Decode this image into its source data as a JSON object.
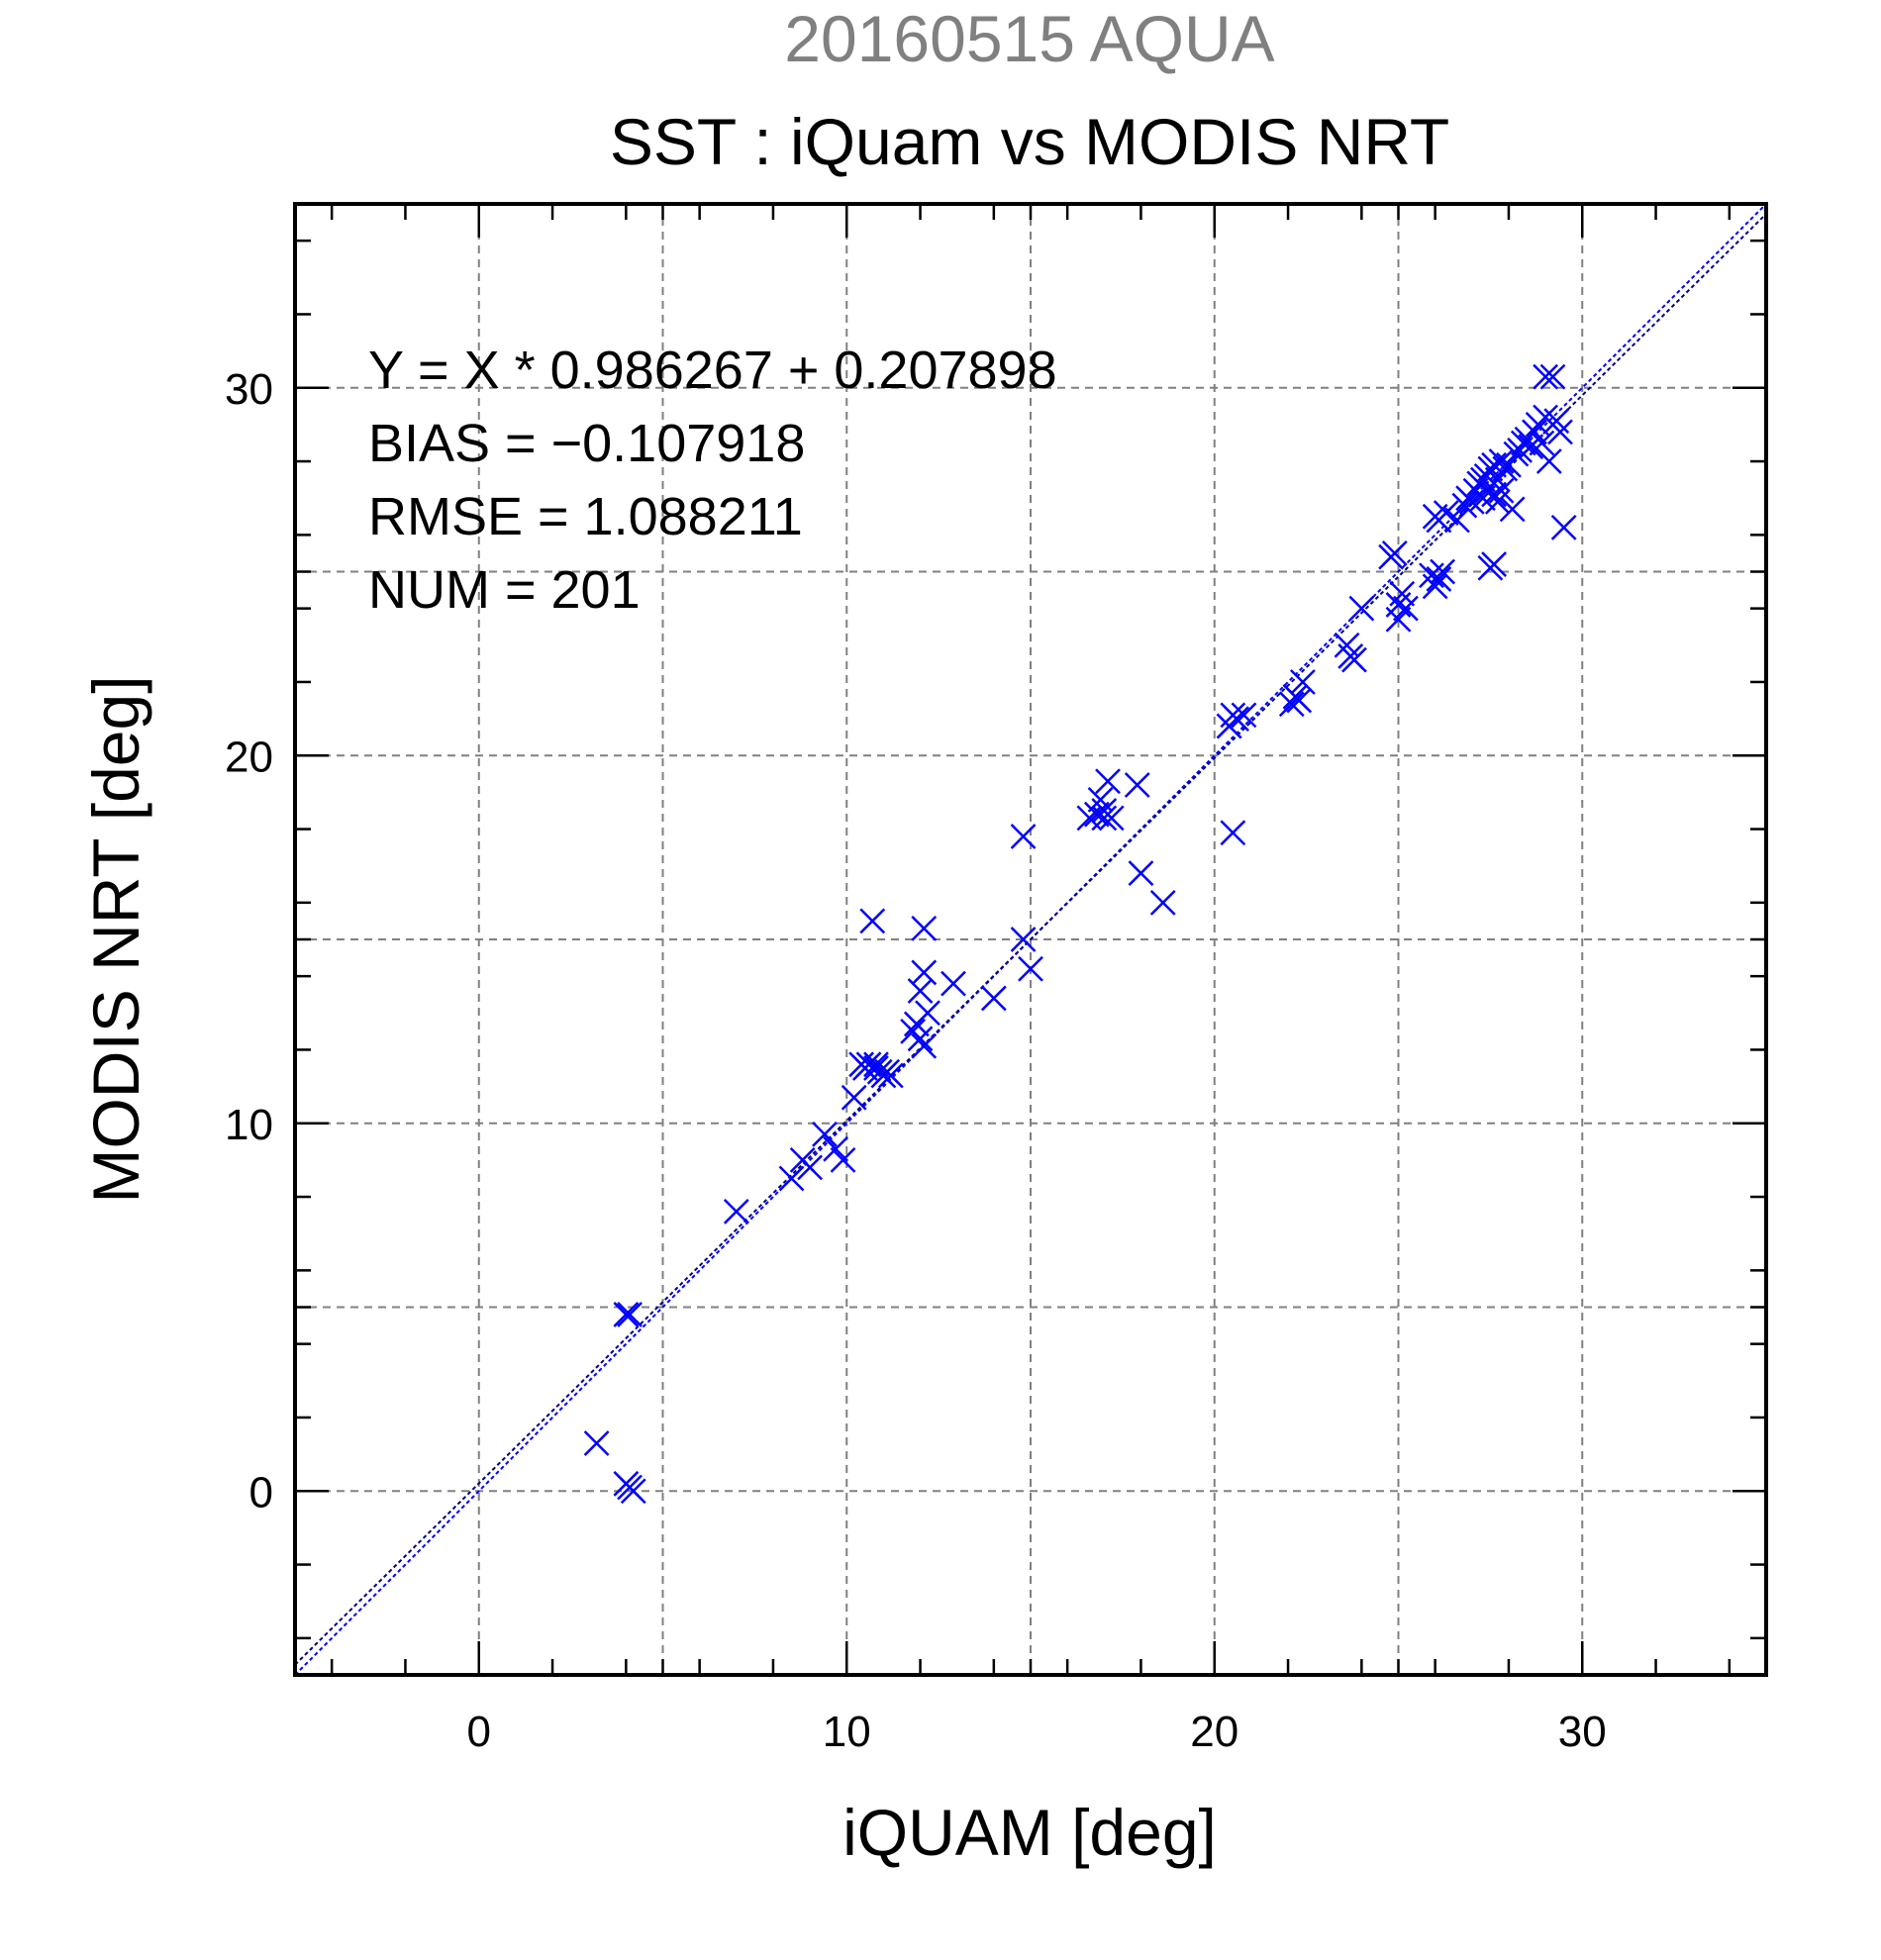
{
  "chart_data": {
    "type": "scatter",
    "suptitle": "20160515 AQUA",
    "title": "SST : iQuam vs MODIS NRT",
    "xlabel": "iQUAM [deg]",
    "ylabel": "MODIS NRT [deg]",
    "xlim": [
      -5,
      35
    ],
    "ylim": [
      -5,
      35
    ],
    "xticks": [
      0,
      10,
      20,
      30
    ],
    "yticks": [
      0,
      10,
      20,
      30
    ],
    "grid": true,
    "colors": {
      "points": "#0000ff",
      "fit_line": "#000080",
      "identity_line": "#0000ff",
      "suptitle": "#808080",
      "grid": "#808080"
    },
    "stats": [
      "Y = X * 0.986267 + 0.207898",
      "BIAS = −0.107918",
      "RMSE = 1.088211",
      "NUM = 201"
    ],
    "fit": {
      "slope": 0.986267,
      "intercept": 0.207898
    },
    "series": [
      {
        "marker": "x",
        "x": [
          3.2,
          4.0,
          4.1,
          4.1,
          4.2,
          4.0,
          7.0,
          8.5,
          8.8,
          9.0,
          9.4,
          9.7,
          9.9,
          10.2,
          10.4,
          10.6,
          10.8,
          10.9,
          11.0,
          11.2,
          10.5,
          10.7,
          11.1,
          10.8,
          11.8,
          11.9,
          12.0,
          12.1,
          12.2,
          12.0,
          12.1,
          12.9,
          12.1,
          14.0,
          14.8,
          14.8,
          15.0,
          16.6,
          16.8,
          17.0,
          16.9,
          17.1,
          17.2,
          17.0,
          17.9,
          18.0,
          18.6,
          20.4,
          20.5,
          20.6,
          20.8,
          20.5,
          20.4,
          22.1,
          22.2,
          22.3,
          22.4,
          23.6,
          23.7,
          23.8,
          24.0,
          24.8,
          24.9,
          25.0,
          25.1,
          25.2,
          25.0,
          25.9,
          26.0,
          26.1,
          26.2,
          26.0,
          26.1,
          26.3,
          26.6,
          26.8,
          27.0,
          27.1,
          27.2,
          27.3,
          27.4,
          27.5,
          27.6,
          27.7,
          27.8,
          27.9,
          28.0,
          27.5,
          27.6,
          27.7,
          28.2,
          28.4,
          28.5,
          28.6,
          28.7,
          28.8,
          29.0,
          29.1,
          29.2,
          29.3,
          29.4,
          29.0,
          28.9,
          29.5,
          27.4,
          27.8,
          27.6,
          28.1,
          28.3,
          26.9,
          27.3
        ],
        "y": [
          1.3,
          4.8,
          4.8,
          0.1,
          0.0,
          0.2,
          7.6,
          8.5,
          9.0,
          8.8,
          9.7,
          9.3,
          9.0,
          10.7,
          11.6,
          11.6,
          11.5,
          11.4,
          11.3,
          11.3,
          11.5,
          15.5,
          11.4,
          11.6,
          12.5,
          12.7,
          12.3,
          12.1,
          13.0,
          13.6,
          14.1,
          13.8,
          15.3,
          13.4,
          17.8,
          15.0,
          14.2,
          18.3,
          18.4,
          18.3,
          18.8,
          19.3,
          18.3,
          18.5,
          19.2,
          16.8,
          16.0,
          20.8,
          17.9,
          21.0,
          21.1,
          21.1,
          20.8,
          21.4,
          21.6,
          21.5,
          22.0,
          23.0,
          22.7,
          22.6,
          24.0,
          25.4,
          25.5,
          24.1,
          24.4,
          24.0,
          23.7,
          24.9,
          24.6,
          24.8,
          25.0,
          26.5,
          26.4,
          26.6,
          26.4,
          26.8,
          26.9,
          27.2,
          27.4,
          27.0,
          27.6,
          27.8,
          27.9,
          27.5,
          28.0,
          27.8,
          27.9,
          25.1,
          25.2,
          26.9,
          28.2,
          28.5,
          28.6,
          28.4,
          28.8,
          29.0,
          30.3,
          28.0,
          30.3,
          29.1,
          28.8,
          29.2,
          28.5,
          26.2,
          27.2,
          27.2,
          27.1,
          26.7,
          28.3,
          27.0,
          27.5
        ]
      }
    ]
  }
}
